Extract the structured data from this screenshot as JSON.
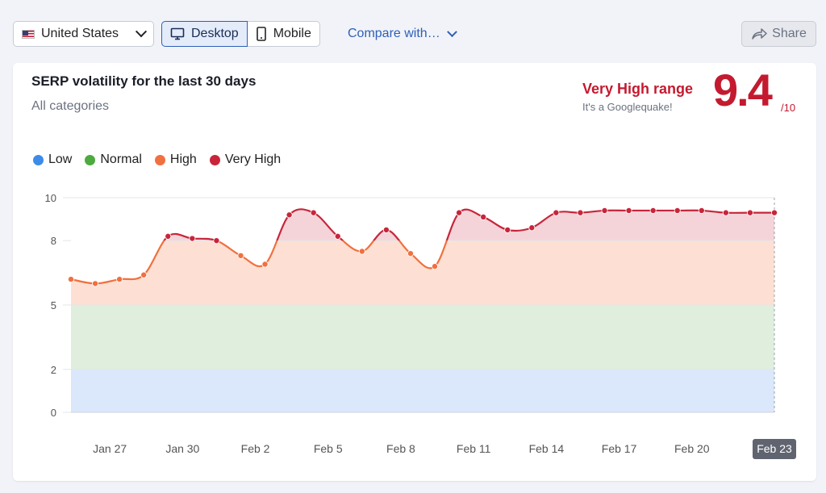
{
  "toolbar": {
    "country": "United States",
    "device_desktop": "Desktop",
    "device_mobile": "Mobile",
    "compare": "Compare with…",
    "share": "Share"
  },
  "card": {
    "title": "SERP volatility for the last 30 days",
    "subtitle": "All categories",
    "range_label": "Very High range",
    "range_note": "It's a Googlequake!",
    "score": "9.4",
    "score_max": "/10"
  },
  "colors": {
    "low": "#3d8be8",
    "normal": "#4caa3e",
    "high": "#f07040",
    "very_high": "#c8253a",
    "accent": "#2e5fb8"
  },
  "chart_data": {
    "type": "line",
    "legend": [
      {
        "label": "Low",
        "color": "#3d8be8"
      },
      {
        "label": "Normal",
        "color": "#4caa3e"
      },
      {
        "label": "High",
        "color": "#f07040"
      },
      {
        "label": "Very High",
        "color": "#c8253a"
      }
    ],
    "bands": [
      {
        "name": "Low",
        "from": 0,
        "to": 2,
        "fill": "#dbe7fb"
      },
      {
        "name": "Normal",
        "from": 2,
        "to": 5,
        "fill": "#dfeedd"
      },
      {
        "name": "High",
        "from": 5,
        "to": 8,
        "fill": "#fde0d3"
      },
      {
        "name": "Very High",
        "from": 8,
        "to": 10,
        "fill": "#f4d4d9"
      }
    ],
    "yticks": [
      0,
      2,
      5,
      8,
      10
    ],
    "ylim": [
      0,
      10
    ],
    "x_tick_labels": [
      "Jan 27",
      "Jan 30",
      "Feb 2",
      "Feb 5",
      "Feb 8",
      "Feb 11",
      "Feb 14",
      "Feb 17",
      "Feb 20",
      "Feb 23"
    ],
    "x_tick_indices": [
      2,
      5,
      8,
      11,
      14,
      17,
      20,
      23,
      26,
      29
    ],
    "highlighted_tick": "Feb 23",
    "values": [
      6.2,
      6.0,
      6.2,
      6.4,
      8.2,
      8.1,
      8.0,
      7.3,
      6.9,
      9.2,
      9.3,
      8.2,
      7.5,
      8.5,
      7.4,
      6.8,
      9.3,
      9.1,
      8.5,
      8.6,
      9.3,
      9.3,
      9.4,
      9.4,
      9.4,
      9.4,
      9.4,
      9.3,
      9.3,
      9.3
    ]
  }
}
